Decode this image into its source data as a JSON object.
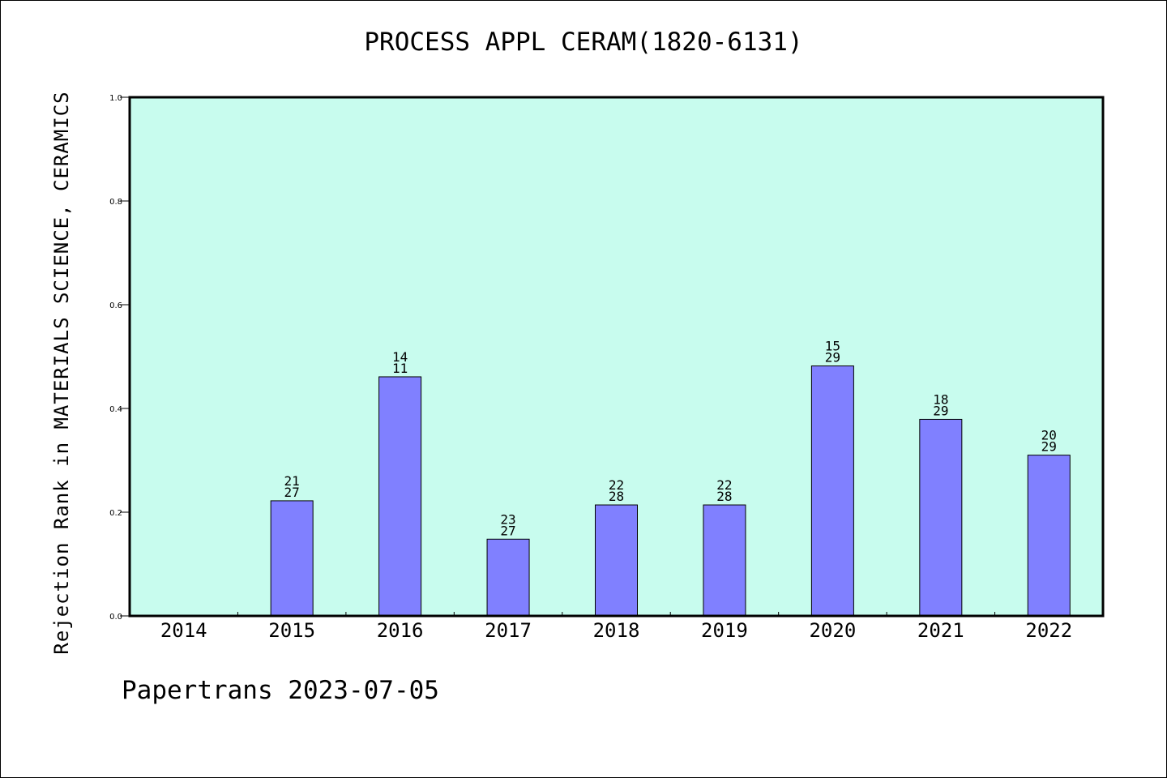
{
  "chart_data": {
    "type": "bar",
    "title": "PROCESS APPL CERAM(1820-6131)",
    "xlabel": "",
    "ylabel": "Rejection Rank in MATERIALS SCIENCE, CERAMICS",
    "categories": [
      "2014",
      "2015",
      "2016",
      "2017",
      "2018",
      "2019",
      "2020",
      "2021",
      "2022"
    ],
    "values": [
      null,
      0.222,
      0.461,
      0.148,
      0.214,
      0.214,
      0.482,
      0.379,
      0.31
    ],
    "bar_labels": [
      [
        "",
        ""
      ],
      [
        "21",
        "27"
      ],
      [
        "14",
        "11"
      ],
      [
        "23",
        "27"
      ],
      [
        "22",
        "28"
      ],
      [
        "22",
        "28"
      ],
      [
        "15",
        "29"
      ],
      [
        "18",
        "29"
      ],
      [
        "20",
        "29"
      ]
    ],
    "yticks": [
      "0.0",
      "0.2",
      "0.4",
      "0.6",
      "0.8",
      "1.0"
    ],
    "ylim": [
      0,
      1.0
    ],
    "grid": false,
    "colors": {
      "plot_bg": "#c8fcee",
      "bar": "#8080ff",
      "border": "#000000"
    }
  },
  "footer": "Papertrans 2023-07-05"
}
